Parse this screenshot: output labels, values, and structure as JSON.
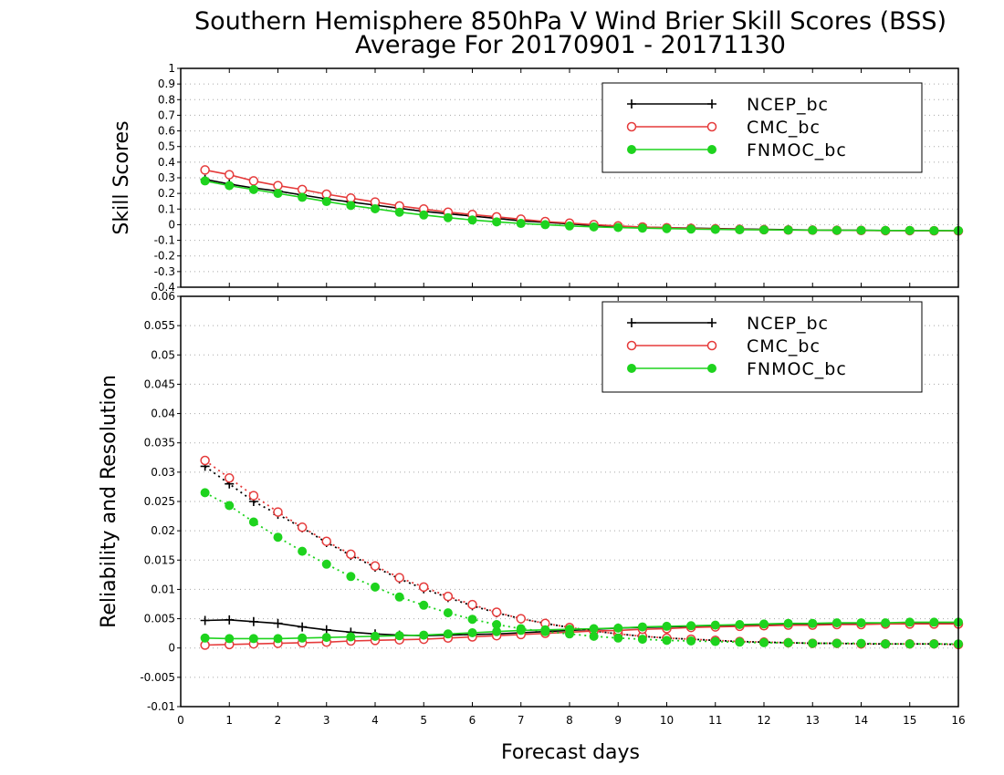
{
  "title_line1": "Southern Hemisphere 850hPa V Wind Brier Skill Scores (BSS)",
  "title_line2": "Average For 20170901 - 20171130",
  "colors": {
    "ncep": "#000000",
    "cmc": "#e53a3a",
    "fnmoc": "#1ed31e",
    "grid": "#a8a8a8"
  },
  "chart_data": [
    {
      "type": "line",
      "ylabel": "Skill Scores",
      "xlim": [
        0,
        16
      ],
      "ylim": [
        -0.4,
        1
      ],
      "x_ticks": [
        0,
        1,
        2,
        3,
        4,
        5,
        6,
        7,
        8,
        9,
        10,
        11,
        12,
        13,
        14,
        15,
        16
      ],
      "y_ticks": [
        "1",
        "0.9",
        "0.8",
        "0.7",
        "0.6",
        "0.5",
        "0.4",
        "0.3",
        "0.2",
        "0.1",
        "0",
        "-0.1",
        "-0.2",
        "-0.3",
        "-0.4"
      ],
      "y_tick_values": [
        1,
        0.9,
        0.8,
        0.7,
        0.6,
        0.5,
        0.4,
        0.3,
        0.2,
        0.1,
        0,
        -0.1,
        -0.2,
        -0.3,
        -0.4
      ],
      "grid": true,
      "legend_position": "top-right",
      "x": [
        0.5,
        1,
        1.5,
        2,
        2.5,
        3,
        3.5,
        4,
        4.5,
        5,
        5.5,
        6,
        6.5,
        7,
        7.5,
        8,
        8.5,
        9,
        9.5,
        10,
        10.5,
        11,
        11.5,
        12,
        12.5,
        13,
        13.5,
        14,
        14.5,
        15,
        15.5,
        16
      ],
      "series": [
        {
          "name": "NCEP_bc",
          "color_key": "ncep",
          "marker": "plus",
          "dash": "solid",
          "values": [
            0.29,
            0.26,
            0.235,
            0.215,
            0.19,
            0.165,
            0.145,
            0.125,
            0.105,
            0.085,
            0.07,
            0.055,
            0.04,
            0.025,
            0.015,
            0.005,
            -0.005,
            -0.01,
            -0.015,
            -0.02,
            -0.022,
            -0.025,
            -0.028,
            -0.03,
            -0.032,
            -0.034,
            -0.035,
            -0.036,
            -0.037,
            -0.038,
            -0.038,
            -0.039
          ]
        },
        {
          "name": "CMC_bc",
          "color_key": "cmc",
          "marker": "circle-open",
          "dash": "solid",
          "values": [
            0.35,
            0.32,
            0.28,
            0.25,
            0.225,
            0.195,
            0.17,
            0.145,
            0.12,
            0.1,
            0.08,
            0.065,
            0.05,
            0.035,
            0.02,
            0.01,
            0.0,
            -0.008,
            -0.015,
            -0.02,
            -0.024,
            -0.027,
            -0.03,
            -0.032,
            -0.034,
            -0.035,
            -0.036,
            -0.037,
            -0.038,
            -0.038,
            -0.039,
            -0.04
          ]
        },
        {
          "name": "FNMOC_bc",
          "color_key": "fnmoc",
          "marker": "circle-filled",
          "dash": "solid",
          "values": [
            0.28,
            0.25,
            0.225,
            0.2,
            0.175,
            0.148,
            0.123,
            0.102,
            0.08,
            0.062,
            0.045,
            0.03,
            0.018,
            0.008,
            0.0,
            -0.008,
            -0.014,
            -0.018,
            -0.022,
            -0.025,
            -0.028,
            -0.03,
            -0.032,
            -0.033,
            -0.034,
            -0.035,
            -0.036,
            -0.036,
            -0.037,
            -0.037,
            -0.038,
            -0.038
          ]
        }
      ]
    },
    {
      "type": "line",
      "ylabel": "Reliability and Resolution",
      "xlabel": "Forecast days",
      "xlim": [
        0,
        16
      ],
      "ylim": [
        -0.01,
        0.06
      ],
      "x_ticks": [
        0,
        1,
        2,
        3,
        4,
        5,
        6,
        7,
        8,
        9,
        10,
        11,
        12,
        13,
        14,
        15,
        16
      ],
      "y_ticks": [
        "0.06",
        "0.055",
        "0.05",
        "0.045",
        "0.04",
        "0.035",
        "0.03",
        "0.025",
        "0.02",
        "0.015",
        "0.01",
        "0.005",
        "0",
        "-0.005",
        "-0.01"
      ],
      "y_tick_values": [
        0.06,
        0.055,
        0.05,
        0.045,
        0.04,
        0.035,
        0.03,
        0.025,
        0.02,
        0.015,
        0.01,
        0.005,
        0,
        -0.005,
        -0.01
      ],
      "grid": true,
      "legend_position": "top-right",
      "x": [
        0.5,
        1,
        1.5,
        2,
        2.5,
        3,
        3.5,
        4,
        4.5,
        5,
        5.5,
        6,
        6.5,
        7,
        7.5,
        8,
        8.5,
        9,
        9.5,
        10,
        10.5,
        11,
        11.5,
        12,
        12.5,
        13,
        13.5,
        14,
        14.5,
        15,
        15.5,
        16
      ],
      "series": [
        {
          "name": "NCEP_bc",
          "color_key": "ncep",
          "marker": "plus",
          "dash": "dotted",
          "values": [
            0.031,
            0.028,
            0.025,
            0.0228,
            0.0205,
            0.018,
            0.0158,
            0.0138,
            0.0118,
            0.0101,
            0.0086,
            0.0072,
            0.006,
            0.005,
            0.0042,
            0.0035,
            0.0029,
            0.0024,
            0.002,
            0.0017,
            0.0015,
            0.0013,
            0.0011,
            0.001,
            0.0009,
            0.0008,
            0.0008,
            0.0007,
            0.0007,
            0.0007,
            0.0007,
            0.0006
          ]
        },
        {
          "name": "NCEP_bc",
          "color_key": "ncep",
          "marker": "plus",
          "dash": "solid",
          "values": [
            0.0047,
            0.0048,
            0.0045,
            0.0042,
            0.0036,
            0.0031,
            0.0027,
            0.0024,
            0.0022,
            0.0021,
            0.0022,
            0.0023,
            0.0024,
            0.0026,
            0.0028,
            0.003,
            0.0032,
            0.0034,
            0.0035,
            0.0036,
            0.0037,
            0.0038,
            0.0039,
            0.004,
            0.004,
            0.0041,
            0.0041,
            0.0041,
            0.0042,
            0.0042,
            0.0042,
            0.0042
          ]
        },
        {
          "name": "CMC_bc",
          "color_key": "cmc",
          "marker": "circle-open",
          "dash": "dotted",
          "values": [
            0.032,
            0.029,
            0.026,
            0.0232,
            0.0206,
            0.0182,
            0.016,
            0.014,
            0.012,
            0.0104,
            0.0088,
            0.0074,
            0.0061,
            0.005,
            0.0042,
            0.0035,
            0.0029,
            0.0024,
            0.002,
            0.0017,
            0.0015,
            0.0013,
            0.0011,
            0.001,
            0.0009,
            0.0008,
            0.0008,
            0.0007,
            0.0007,
            0.0007,
            0.0007,
            0.0006
          ]
        },
        {
          "name": "CMC_bc",
          "color_key": "cmc",
          "marker": "circle-open",
          "dash": "solid",
          "values": [
            0.0005,
            0.0006,
            0.0007,
            0.0008,
            0.0009,
            0.001,
            0.0012,
            0.0013,
            0.0014,
            0.0015,
            0.0017,
            0.0019,
            0.0021,
            0.0023,
            0.0025,
            0.0027,
            0.0029,
            0.003,
            0.0032,
            0.0033,
            0.0035,
            0.0036,
            0.0037,
            0.0038,
            0.0039,
            0.0039,
            0.004,
            0.004,
            0.0041,
            0.0041,
            0.0041,
            0.0041
          ]
        },
        {
          "name": "FNMOC_bc",
          "color_key": "fnmoc",
          "marker": "circle-filled",
          "dash": "dotted",
          "values": [
            0.0265,
            0.0243,
            0.0215,
            0.0189,
            0.0165,
            0.0143,
            0.0122,
            0.0104,
            0.0087,
            0.0073,
            0.006,
            0.0049,
            0.004,
            0.0033,
            0.0028,
            0.0024,
            0.002,
            0.0017,
            0.0015,
            0.0013,
            0.0012,
            0.0011,
            0.001,
            0.0009,
            0.0009,
            0.0008,
            0.0008,
            0.0008,
            0.0007,
            0.0007,
            0.0007,
            0.0007
          ]
        },
        {
          "name": "FNMOC_bc",
          "color_key": "fnmoc",
          "marker": "circle-filled",
          "dash": "solid",
          "values": [
            0.0017,
            0.0016,
            0.0016,
            0.0016,
            0.0017,
            0.0018,
            0.0019,
            0.002,
            0.0021,
            0.0022,
            0.0024,
            0.0026,
            0.0028,
            0.003,
            0.0031,
            0.0032,
            0.0033,
            0.0034,
            0.0036,
            0.0037,
            0.0038,
            0.0039,
            0.004,
            0.0041,
            0.0042,
            0.0042,
            0.0043,
            0.0043,
            0.0043,
            0.0044,
            0.0044,
            0.0044
          ]
        }
      ]
    }
  ],
  "legends": [
    {
      "items": [
        {
          "label": "NCEP_bc",
          "color_key": "ncep",
          "marker": "plus"
        },
        {
          "label": "CMC_bc",
          "color_key": "cmc",
          "marker": "circle-open"
        },
        {
          "label": "FNMOC_bc",
          "color_key": "fnmoc",
          "marker": "circle-filled"
        }
      ]
    },
    {
      "items": [
        {
          "label": "NCEP_bc",
          "color_key": "ncep",
          "marker": "plus"
        },
        {
          "label": "CMC_bc",
          "color_key": "cmc",
          "marker": "circle-open"
        },
        {
          "label": "FNMOC_bc",
          "color_key": "fnmoc",
          "marker": "circle-filled"
        }
      ]
    }
  ]
}
